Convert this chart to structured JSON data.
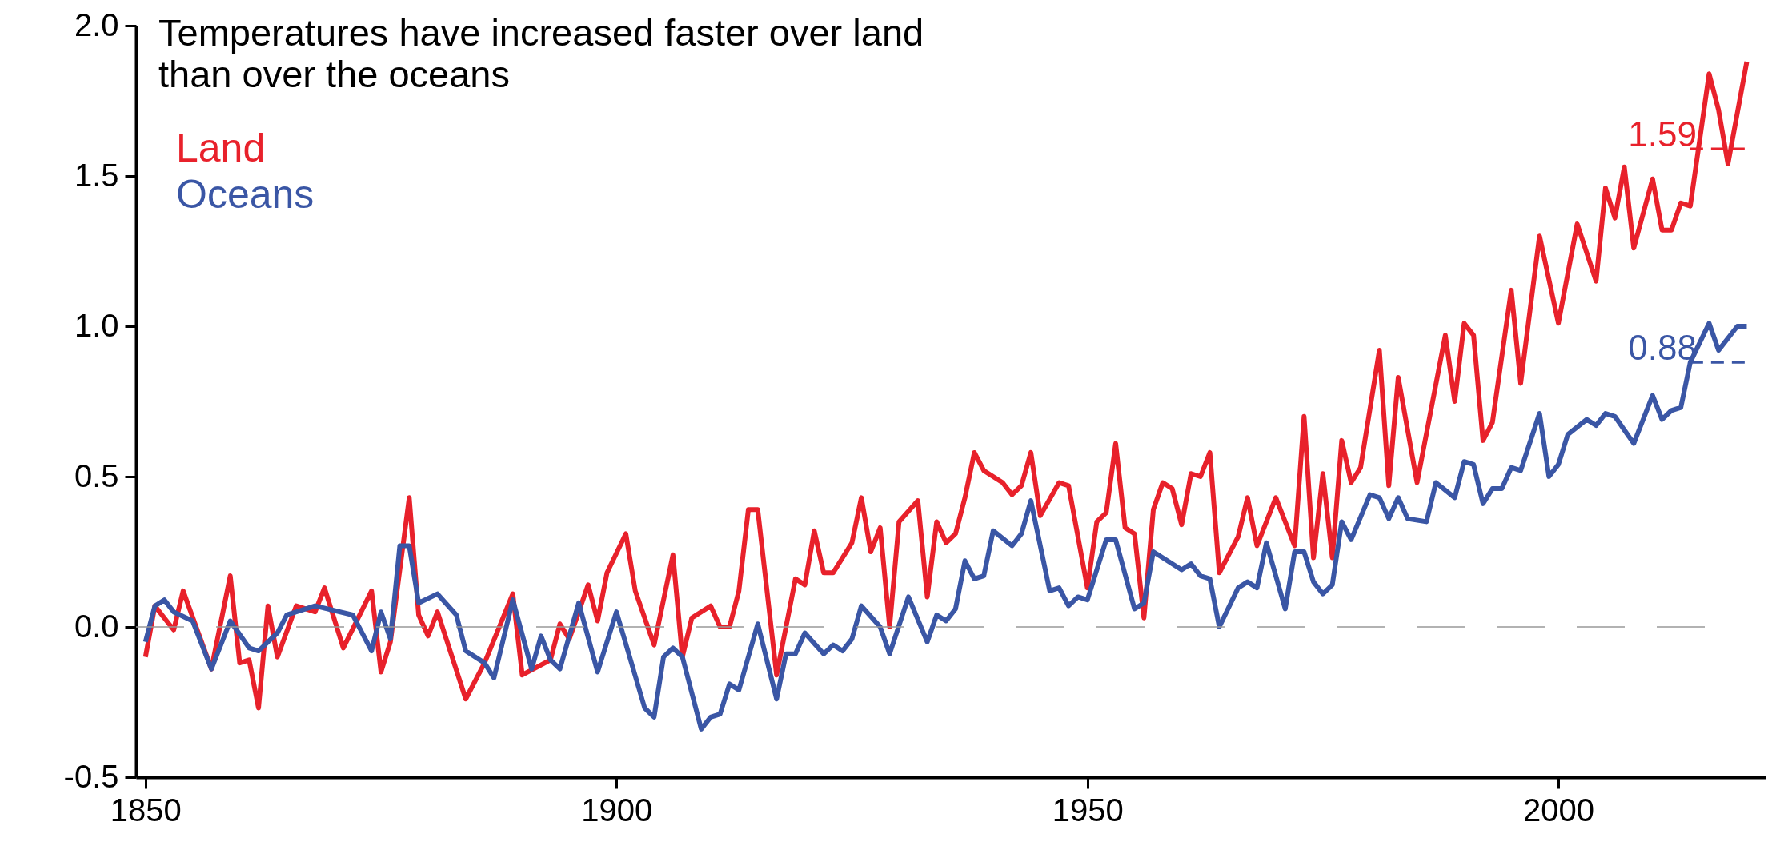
{
  "chart_data": {
    "type": "line",
    "title": "Temperatures have increased faster over land than over the oceans",
    "xlim": [
      1849,
      2022
    ],
    "xticks": [
      1850,
      1900,
      1950,
      2000
    ],
    "ylim": [
      -0.5,
      2.0
    ],
    "yticks": [
      {
        "value": -0.5,
        "label": "-0.5"
      },
      {
        "value": 0,
        "label": "0.0"
      },
      0.5,
      {
        "value": 1,
        "label": "1.0"
      },
      1.5,
      {
        "value": 2,
        "label": "2.0"
      }
    ],
    "grid": false,
    "legend": "top left",
    "marker": "none",
    "line_style": "solid",
    "ref_lines": [
      {
        "axis": "y",
        "value": 0,
        "color": "#999999",
        "line_style": "dashed"
      }
    ],
    "series": [
      {
        "name": "Land",
        "color": "#e8212b",
        "x": [
          1850,
          1851,
          1853,
          1854,
          1857,
          1859,
          1860,
          1861,
          1862,
          1863,
          1864,
          1866,
          1868,
          1869,
          1871,
          1874,
          1875,
          1876,
          1878,
          1879,
          1880,
          1881,
          1884,
          1886,
          1889,
          1890,
          1893,
          1894,
          1895,
          1897,
          1898,
          1899,
          1901,
          1902,
          1904,
          1906,
          1907,
          1908,
          1910,
          1911,
          1912,
          1913,
          1914,
          1915,
          1917,
          1919,
          1920,
          1921,
          1922,
          1923,
          1925,
          1926,
          1927,
          1928,
          1929,
          1930,
          1932,
          1933,
          1934,
          1935,
          1936,
          1937,
          1938,
          1939,
          1941,
          1942,
          1943,
          1944,
          1945,
          1947,
          1948,
          1950,
          1951,
          1952,
          1953,
          1954,
          1955,
          1956,
          1957,
          1958,
          1959,
          1960,
          1961,
          1962,
          1963,
          1964,
          1966,
          1967,
          1968,
          1970,
          1972,
          1973,
          1974,
          1975,
          1976,
          1977,
          1978,
          1979,
          1981,
          1982,
          1983,
          1985,
          1988,
          1989,
          1990,
          1991,
          1992,
          1993,
          1995,
          1996,
          1998,
          2000,
          2002,
          2004,
          2005,
          2006,
          2007,
          2008,
          2010,
          2011,
          2012,
          2013,
          2014,
          2016,
          2017,
          2018,
          2020
        ],
        "values": [
          -0.1,
          0.07,
          -0.01,
          0.12,
          -0.14,
          0.17,
          -0.12,
          -0.11,
          -0.27,
          0.07,
          -0.1,
          0.07,
          0.05,
          0.13,
          -0.07,
          0.12,
          -0.15,
          -0.05,
          0.43,
          0.04,
          -0.03,
          0.05,
          -0.24,
          -0.12,
          0.11,
          -0.16,
          -0.11,
          0.01,
          -0.04,
          0.14,
          0.02,
          0.18,
          0.31,
          0.12,
          -0.06,
          0.24,
          -0.1,
          0.03,
          0.07,
          0.0,
          0.0,
          0.12,
          0.39,
          0.39,
          -0.16,
          0.16,
          0.14,
          0.32,
          0.18,
          0.18,
          0.28,
          0.43,
          0.25,
          0.33,
          0.0,
          0.35,
          0.42,
          0.1,
          0.35,
          0.28,
          0.31,
          0.43,
          0.58,
          0.52,
          0.48,
          0.44,
          0.47,
          0.58,
          0.37,
          0.48,
          0.47,
          0.13,
          0.35,
          0.38,
          0.61,
          0.33,
          0.31,
          0.03,
          0.39,
          0.48,
          0.46,
          0.34,
          0.51,
          0.5,
          0.58,
          0.18,
          0.3,
          0.43,
          0.27,
          0.43,
          0.27,
          0.7,
          0.23,
          0.51,
          0.23,
          0.62,
          0.48,
          0.53,
          0.92,
          0.47,
          0.83,
          0.48,
          0.97,
          0.75,
          1.01,
          0.97,
          0.62,
          0.68,
          1.12,
          0.81,
          1.3,
          1.01,
          1.34,
          1.15,
          1.46,
          1.36,
          1.53,
          1.26,
          1.49,
          1.32,
          1.32,
          1.41,
          1.4,
          1.84,
          1.72,
          1.54,
          1.88
        ]
      },
      {
        "name": "Oceans",
        "color": "#3a56a5",
        "x": [
          1850,
          1851,
          1852,
          1853,
          1855,
          1857,
          1859,
          1861,
          1862,
          1864,
          1865,
          1868,
          1872,
          1874,
          1875,
          1876,
          1877,
          1878,
          1879,
          1881,
          1883,
          1884,
          1886,
          1887,
          1889,
          1891,
          1892,
          1893,
          1894,
          1896,
          1898,
          1900,
          1903,
          1904,
          1905,
          1906,
          1907,
          1909,
          1910,
          1911,
          1912,
          1913,
          1915,
          1917,
          1918,
          1919,
          1920,
          1922,
          1923,
          1924,
          1925,
          1926,
          1928,
          1929,
          1931,
          1933,
          1934,
          1935,
          1936,
          1937,
          1938,
          1939,
          1940,
          1942,
          1943,
          1944,
          1946,
          1947,
          1948,
          1949,
          1950,
          1952,
          1953,
          1955,
          1956,
          1957,
          1960,
          1961,
          1962,
          1963,
          1964,
          1966,
          1967,
          1968,
          1969,
          1971,
          1972,
          1973,
          1974,
          1975,
          1976,
          1977,
          1978,
          1980,
          1981,
          1982,
          1983,
          1984,
          1986,
          1987,
          1989,
          1990,
          1991,
          1992,
          1993,
          1994,
          1995,
          1996,
          1998,
          1999,
          2000,
          2001,
          2003,
          2004,
          2005,
          2006,
          2008,
          2010,
          2011,
          2012,
          2013,
          2014,
          2016,
          2017,
          2019,
          2020
        ],
        "values": [
          -0.05,
          0.07,
          0.09,
          0.05,
          0.02,
          -0.14,
          0.02,
          -0.07,
          -0.08,
          -0.02,
          0.04,
          0.07,
          0.04,
          -0.08,
          0.05,
          -0.04,
          0.27,
          0.27,
          0.08,
          0.11,
          0.04,
          -0.08,
          -0.12,
          -0.17,
          0.09,
          -0.14,
          -0.03,
          -0.11,
          -0.14,
          0.08,
          -0.15,
          0.05,
          -0.27,
          -0.3,
          -0.1,
          -0.07,
          -0.1,
          -0.34,
          -0.3,
          -0.29,
          -0.19,
          -0.21,
          0.01,
          -0.24,
          -0.09,
          -0.09,
          -0.02,
          -0.09,
          -0.06,
          -0.08,
          -0.04,
          0.07,
          0.0,
          -0.09,
          0.1,
          -0.05,
          0.04,
          0.02,
          0.06,
          0.22,
          0.16,
          0.17,
          0.32,
          0.27,
          0.31,
          0.42,
          0.12,
          0.13,
          0.07,
          0.1,
          0.09,
          0.29,
          0.29,
          0.06,
          0.08,
          0.25,
          0.19,
          0.21,
          0.17,
          0.16,
          0.0,
          0.13,
          0.15,
          0.13,
          0.28,
          0.06,
          0.25,
          0.25,
          0.15,
          0.11,
          0.14,
          0.35,
          0.29,
          0.44,
          0.43,
          0.36,
          0.43,
          0.36,
          0.35,
          0.48,
          0.43,
          0.55,
          0.54,
          0.41,
          0.46,
          0.46,
          0.53,
          0.52,
          0.71,
          0.5,
          0.54,
          0.64,
          0.69,
          0.67,
          0.71,
          0.7,
          0.61,
          0.77,
          0.69,
          0.72,
          0.73,
          0.88,
          1.01,
          0.92,
          1.0,
          1.0
        ]
      },
      {
        "color": "#e8212b",
        "line_style": "dashed",
        "x": [
          2014,
          2020
        ],
        "values": [
          1.59,
          1.59
        ],
        "value_labels": [
          "1.59",
          null
        ]
      },
      {
        "color": "#3a56a5",
        "line_style": "dashed",
        "x": [
          2014,
          2020
        ],
        "values": [
          0.88,
          0.88
        ],
        "value_labels": [
          "0.88",
          null
        ]
      }
    ]
  }
}
